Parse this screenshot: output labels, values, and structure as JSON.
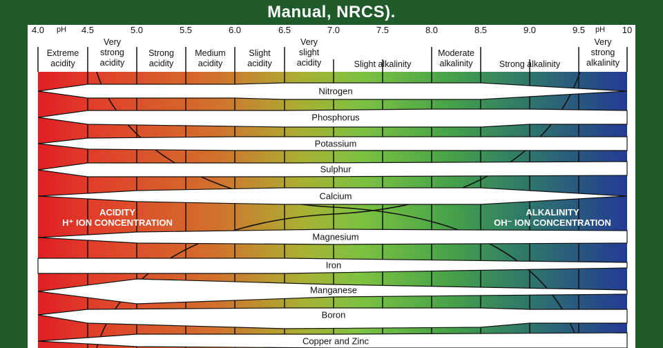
{
  "title": "Manual, NRCS).",
  "ph_scale": {
    "ph_label": "pH",
    "ticks": [
      "4.0",
      "4.5",
      "5.0",
      "5.5",
      "6.0",
      "6.5",
      "7.0",
      "7.5",
      "8.0",
      "8.5",
      "9.0",
      "9.5",
      "10"
    ]
  },
  "categories": [
    {
      "line1": "Extreme",
      "line2": "acidity"
    },
    {
      "line1": "Very",
      "line2": "strong",
      "line3": "acidity"
    },
    {
      "line1": "Strong",
      "line2": "acidity"
    },
    {
      "line1": "Medium",
      "line2": "acidity"
    },
    {
      "line1": "Slight",
      "line2": "acidity"
    },
    {
      "line1": "Very",
      "line2": "slight",
      "line3": "acidity"
    },
    {
      "line1": "Slight alkalinity"
    },
    {
      "line1": "Moderate",
      "line2": "alkalinity"
    },
    {
      "line1": "Strong alkalinity"
    },
    {
      "line1": "Very",
      "line2": "strong",
      "line3": "alkalinity"
    }
  ],
  "nutrients": [
    "Nitrogen",
    "Phosphorus",
    "Potassium",
    "Sulphur",
    "Calcium",
    "Magnesium",
    "Iron",
    "Manganese",
    "Boron",
    "Copper and Zinc"
  ],
  "acidity_label": {
    "line1": "ACIDITY",
    "line2": "H⁺ ION CONCENTRATION"
  },
  "alkalinity_label": {
    "line1": "ALKALINITY",
    "line2": "OH⁻ ION CONCENTRATION"
  },
  "colors": {
    "background": "#1f5a2a",
    "acid": "#e01e24",
    "neutral": "#7cc242",
    "alkaline": "#233a94"
  }
}
